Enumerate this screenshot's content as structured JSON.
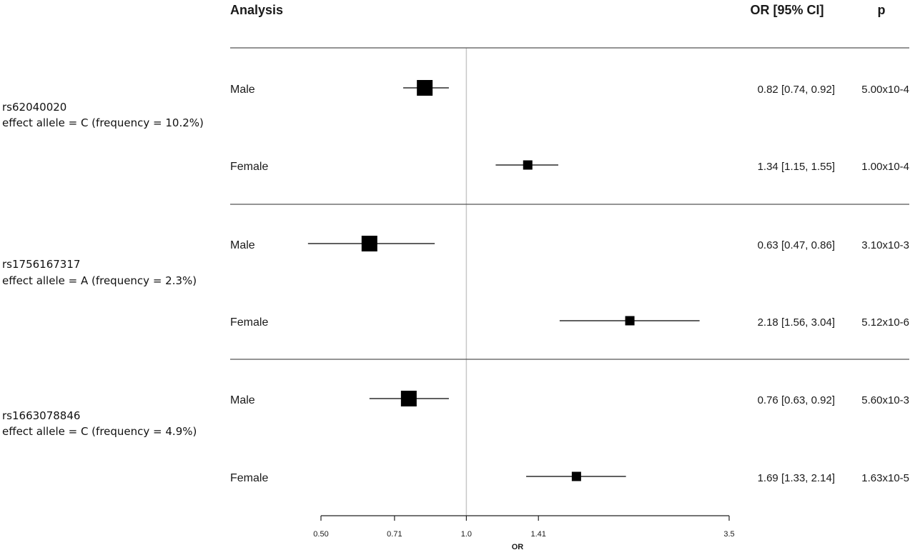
{
  "header": {
    "analysis": "Analysis",
    "or_ci": "OR [95% CI]",
    "p": "p"
  },
  "groups": [
    {
      "snp": "rs62040020",
      "allele": "effect allele = C  (frequency = 10.2%)",
      "rows": [
        {
          "label": "Male",
          "or": 0.82,
          "lo": 0.74,
          "hi": 0.92,
          "or_text": "0.82 [0.74, 0.92]",
          "p": "5.00x10-4",
          "size": "large"
        },
        {
          "label": "Female",
          "or": 1.34,
          "lo": 1.15,
          "hi": 1.55,
          "or_text": "1.34 [1.15, 1.55]",
          "p": "1.00x10-4",
          "size": "small"
        }
      ]
    },
    {
      "snp": "rs1756167317",
      "allele": "effect allele = A  (frequency = 2.3%)",
      "rows": [
        {
          "label": "Male",
          "or": 0.63,
          "lo": 0.47,
          "hi": 0.86,
          "or_text": "0.63 [0.47, 0.86]",
          "p": "3.10x10-3",
          "size": "large"
        },
        {
          "label": "Female",
          "or": 2.18,
          "lo": 1.56,
          "hi": 3.04,
          "or_text": "2.18 [1.56, 3.04]",
          "p": "5.12x10-6",
          "size": "small"
        }
      ]
    },
    {
      "snp": "rs1663078846",
      "allele": "effect allele = C  (frequency = 4.9%)",
      "rows": [
        {
          "label": "Male",
          "or": 0.76,
          "lo": 0.63,
          "hi": 0.92,
          "or_text": "0.76 [0.63, 0.92]",
          "p": "5.60x10-3",
          "size": "large"
        },
        {
          "label": "Female",
          "or": 1.69,
          "lo": 1.33,
          "hi": 2.14,
          "or_text": "1.69 [1.33, 2.14]",
          "p": "1.63x10-5",
          "size": "small"
        }
      ]
    }
  ],
  "chart_data": {
    "type": "scatter",
    "subtype": "forest-plot",
    "x_scale": "log",
    "xlim": [
      0.5,
      3.5
    ],
    "reference_line": 1.0,
    "x_ticks": [
      0.5,
      0.71,
      1.0,
      1.41,
      3.5
    ],
    "x_tick_labels": [
      "0.50",
      "0.71",
      "1.0",
      "1.41",
      "3.5"
    ],
    "xlabel": "OR",
    "colors": {
      "marker": "#000000",
      "ci_line": "#000000",
      "reference_line": "#c8c8c8",
      "separator": "#555555"
    },
    "series": [
      {
        "name": "rs62040020 Male",
        "or": 0.82,
        "ci": [
          0.74,
          0.92
        ]
      },
      {
        "name": "rs62040020 Female",
        "or": 1.34,
        "ci": [
          1.15,
          1.55
        ]
      },
      {
        "name": "rs1756167317 Male",
        "or": 0.63,
        "ci": [
          0.47,
          0.86
        ]
      },
      {
        "name": "rs1756167317 Female",
        "or": 2.18,
        "ci": [
          1.56,
          3.04
        ]
      },
      {
        "name": "rs1663078846 Male",
        "or": 0.76,
        "ci": [
          0.63,
          0.92
        ]
      },
      {
        "name": "rs1663078846 Female",
        "or": 1.69,
        "ci": [
          1.33,
          2.14
        ]
      }
    ]
  }
}
